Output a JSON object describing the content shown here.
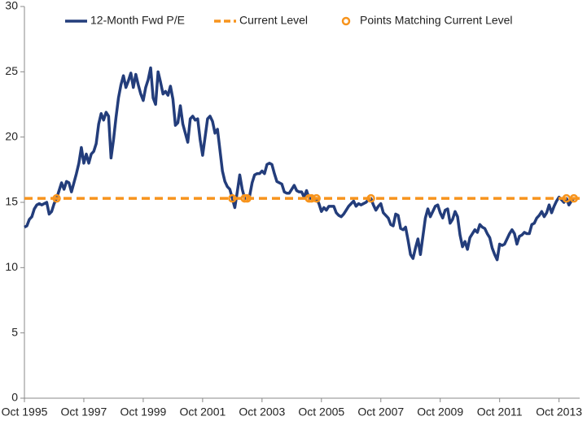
{
  "chart_data": {
    "type": "line",
    "categories": [
      "Oct 1995",
      null,
      null,
      null,
      null,
      null,
      null,
      null,
      null,
      null,
      null,
      null,
      null,
      null,
      null,
      null,
      null,
      null,
      null,
      null,
      null,
      null,
      null,
      null,
      "Oct 1997",
      null,
      null,
      null,
      null,
      null,
      null,
      null,
      null,
      null,
      null,
      null,
      null,
      null,
      null,
      null,
      null,
      null,
      null,
      null,
      null,
      null,
      null,
      null,
      "Oct 1999",
      null,
      null,
      null,
      null,
      null,
      null,
      null,
      null,
      null,
      null,
      null,
      null,
      null,
      null,
      null,
      null,
      null,
      null,
      null,
      null,
      null,
      null,
      null,
      "Oct 2001",
      null,
      null,
      null,
      null,
      null,
      null,
      null,
      null,
      null,
      null,
      null,
      null,
      null,
      null,
      null,
      null,
      null,
      null,
      null,
      null,
      null,
      null,
      null,
      "Oct 2003",
      null,
      null,
      null,
      null,
      null,
      null,
      null,
      null,
      null,
      null,
      null,
      null,
      null,
      null,
      null,
      null,
      null,
      null,
      null,
      null,
      null,
      null,
      null,
      "Oct 2005",
      null,
      null,
      null,
      null,
      null,
      null,
      null,
      null,
      null,
      null,
      null,
      null,
      null,
      null,
      null,
      null,
      null,
      null,
      null,
      null,
      null,
      null,
      null,
      "Oct 2007",
      null,
      null,
      null,
      null,
      null,
      null,
      null,
      null,
      null,
      null,
      null,
      null,
      null,
      null,
      null,
      null,
      null,
      null,
      null,
      null,
      null,
      null,
      null,
      "Oct 2009",
      null,
      null,
      null,
      null,
      null,
      null,
      null,
      null,
      null,
      null,
      null,
      null,
      null,
      null,
      null,
      null,
      null,
      null,
      null,
      null,
      null,
      null,
      null,
      "Oct 2011",
      null,
      null,
      null,
      null,
      null,
      null,
      null,
      null,
      null,
      null,
      null,
      null,
      null,
      null,
      null,
      null,
      null,
      null,
      null,
      null,
      null,
      null,
      null,
      "Oct 2013",
      null,
      null,
      null,
      null,
      null,
      null
    ],
    "series": [
      {
        "name": "12-Month Fwd P/E",
        "color": "#233d7b",
        "values": [
          13.1,
          13.2,
          13.7,
          13.9,
          14.5,
          14.8,
          14.9,
          14.8,
          14.9,
          15.0,
          14.1,
          14.3,
          14.9,
          15.3,
          15.9,
          16.5,
          16.0,
          16.6,
          16.5,
          15.8,
          16.5,
          17.2,
          18.0,
          19.2,
          18.0,
          18.7,
          18.0,
          18.7,
          18.9,
          19.5,
          21.0,
          21.8,
          21.3,
          21.9,
          21.6,
          18.4,
          19.8,
          21.5,
          23.0,
          24.0,
          24.7,
          23.8,
          24.3,
          24.9,
          23.8,
          24.8,
          24.0,
          23.3,
          22.8,
          23.8,
          24.4,
          25.3,
          23.0,
          22.5,
          25.0,
          24.2,
          23.3,
          23.5,
          23.2,
          23.9,
          22.9,
          20.9,
          21.1,
          22.4,
          21.0,
          20.3,
          19.6,
          21.4,
          21.6,
          21.3,
          21.4,
          19.8,
          18.6,
          20.0,
          21.4,
          21.6,
          21.2,
          20.3,
          20.6,
          19.0,
          17.4,
          16.6,
          16.2,
          16.0,
          15.3,
          14.6,
          15.8,
          17.1,
          16.0,
          15.3,
          15.3,
          15.5,
          16.5,
          17.1,
          17.2,
          17.2,
          17.4,
          17.2,
          17.9,
          18.0,
          17.9,
          17.2,
          16.6,
          16.5,
          16.4,
          15.8,
          15.7,
          15.7,
          16.0,
          16.3,
          15.9,
          15.8,
          15.8,
          15.4,
          15.9,
          15.3,
          15.3,
          15.2,
          15.3,
          14.9,
          14.3,
          14.6,
          14.4,
          14.7,
          14.7,
          14.7,
          14.2,
          14.0,
          13.9,
          14.1,
          14.4,
          14.7,
          14.9,
          15.1,
          14.7,
          14.9,
          14.8,
          14.9,
          15.0,
          15.2,
          15.3,
          14.8,
          14.4,
          14.7,
          14.9,
          14.2,
          14.0,
          13.8,
          13.3,
          13.2,
          14.1,
          14.0,
          13.0,
          12.9,
          13.1,
          12.1,
          11.0,
          10.7,
          11.5,
          12.2,
          11.0,
          12.4,
          13.8,
          14.5,
          13.9,
          14.3,
          14.7,
          14.8,
          14.2,
          13.8,
          14.4,
          14.5,
          13.4,
          13.7,
          14.3,
          13.9,
          12.5,
          11.6,
          12.0,
          11.4,
          12.3,
          12.6,
          12.9,
          12.7,
          13.3,
          13.1,
          13.0,
          12.6,
          12.3,
          11.5,
          11.0,
          10.6,
          11.8,
          11.7,
          11.8,
          12.2,
          12.6,
          12.9,
          12.6,
          11.8,
          12.4,
          12.5,
          12.7,
          12.6,
          12.6,
          13.3,
          13.4,
          13.8,
          14.0,
          14.3,
          13.9,
          14.2,
          14.8,
          14.2,
          14.7,
          15.1,
          15.4,
          15.2,
          15.0,
          15.3,
          14.8,
          15.1,
          15.3
        ]
      },
      {
        "name": "Current Level",
        "color": "#f7941d",
        "level": 15.3,
        "dashed": true
      },
      {
        "name": "Points Matching Current Level",
        "color": "#f7941d",
        "marker": "circle",
        "values": [
          null,
          null,
          null,
          null,
          null,
          null,
          null,
          null,
          null,
          null,
          null,
          null,
          null,
          15.3,
          null,
          null,
          null,
          null,
          null,
          null,
          null,
          null,
          null,
          null,
          null,
          null,
          null,
          null,
          null,
          null,
          null,
          null,
          null,
          null,
          null,
          null,
          null,
          null,
          null,
          null,
          null,
          null,
          null,
          null,
          null,
          null,
          null,
          null,
          null,
          null,
          null,
          null,
          null,
          null,
          null,
          null,
          null,
          null,
          null,
          null,
          null,
          null,
          null,
          null,
          null,
          null,
          null,
          null,
          null,
          null,
          null,
          null,
          null,
          null,
          null,
          null,
          null,
          null,
          null,
          null,
          null,
          null,
          null,
          null,
          15.3,
          null,
          null,
          null,
          null,
          15.3,
          15.3,
          null,
          null,
          null,
          null,
          null,
          null,
          null,
          null,
          null,
          null,
          null,
          null,
          null,
          null,
          null,
          null,
          null,
          null,
          null,
          null,
          null,
          null,
          null,
          null,
          15.3,
          15.3,
          null,
          15.3,
          null,
          null,
          null,
          null,
          null,
          null,
          null,
          null,
          null,
          null,
          null,
          null,
          null,
          null,
          null,
          null,
          null,
          null,
          null,
          null,
          null,
          15.3,
          null,
          null,
          null,
          null,
          null,
          null,
          null,
          null,
          null,
          null,
          null,
          null,
          null,
          null,
          null,
          null,
          null,
          null,
          null,
          null,
          null,
          null,
          null,
          null,
          null,
          null,
          null,
          null,
          null,
          null,
          null,
          null,
          null,
          null,
          null,
          null,
          null,
          null,
          null,
          null,
          null,
          null,
          null,
          null,
          null,
          null,
          null,
          null,
          null,
          null,
          null,
          null,
          null,
          null,
          null,
          null,
          null,
          null,
          null,
          null,
          null,
          null,
          null,
          null,
          null,
          null,
          null,
          null,
          null,
          null,
          null,
          null,
          null,
          null,
          null,
          null,
          null,
          null,
          15.3,
          null,
          null,
          15.3
        ]
      }
    ],
    "ylim": [
      0,
      30
    ],
    "yticks": [
      0,
      5,
      10,
      15,
      20,
      25,
      30
    ],
    "grid": false,
    "legend": "top"
  }
}
